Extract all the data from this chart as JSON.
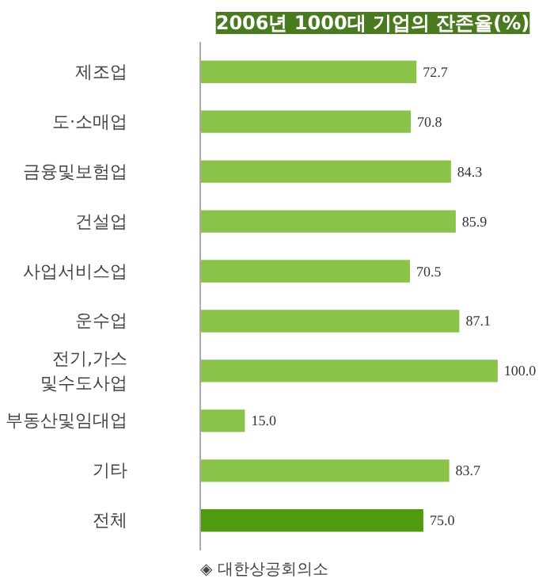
{
  "chart_data": {
    "type": "bar",
    "orientation": "horizontal",
    "title": "2006년 1000대 기업의 잔존율(%)",
    "categories": [
      "제조업",
      "도·소매업",
      "금융및보험업",
      "건설업",
      "사업서비스업",
      "운수업",
      "전기,가스\n및수도사업",
      "부동산및임대업",
      "기타",
      "전체"
    ],
    "values": [
      72.7,
      70.8,
      84.3,
      85.9,
      70.5,
      87.1,
      100.0,
      15.0,
      83.7,
      75.0
    ],
    "colors": [
      "#8bc34a",
      "#8bc34a",
      "#8bc34a",
      "#8bc34a",
      "#8bc34a",
      "#8bc34a",
      "#8bc34a",
      "#8bc34a",
      "#8bc34a",
      "#4f9a0f"
    ],
    "value_labels": [
      "72.7",
      "70.8",
      "84.3",
      "85.9",
      "70.5",
      "87.1",
      "100.0",
      "15.0",
      "83.7",
      "75.0"
    ],
    "tick_labels": "y",
    "grid": false,
    "annotations": [
      "◈ 대한상공회의소"
    ]
  }
}
